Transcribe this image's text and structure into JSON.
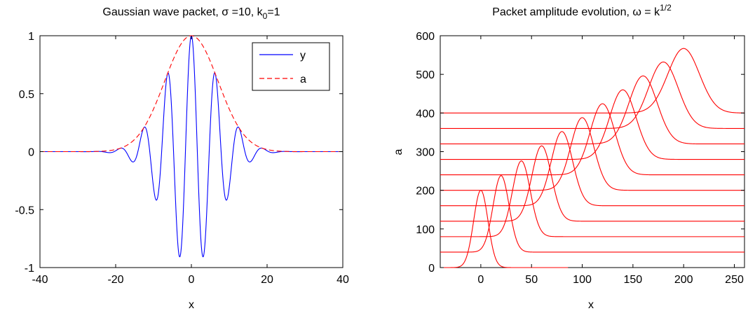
{
  "chart_data": [
    {
      "type": "line",
      "title": "Gaussian wave packet, σ =10, k",
      "title_sub": "0",
      "title_tail": "=1",
      "xlabel": "x",
      "ylabel": "",
      "xlim": [
        -40,
        40
      ],
      "ylim": [
        -1,
        1
      ],
      "xticks": [
        -40,
        -20,
        0,
        20,
        40
      ],
      "yticks": [
        -1,
        -0.5,
        0,
        0.5,
        1
      ],
      "grid": false,
      "legend_position": "top-right",
      "function": "y = exp(-(x/10)^2) * cos(x); a = exp(-(x/10)^2)",
      "series": [
        {
          "name": "y",
          "color": "#0000ff",
          "style": "solid",
          "sigma": 10,
          "k0": 1
        },
        {
          "name": "a",
          "color": "#ff0000",
          "style": "dashed",
          "sigma": 10
        }
      ]
    },
    {
      "type": "line",
      "title": "Packet amplitude evolution,  ω = k",
      "title_sup": "1/2",
      "xlabel": "x",
      "ylabel": "a",
      "xlim": [
        -40,
        260
      ],
      "ylim": [
        0,
        600
      ],
      "xticks": [
        0,
        50,
        100,
        150,
        200,
        250
      ],
      "yticks": [
        0,
        100,
        200,
        300,
        400,
        500,
        600
      ],
      "grid": false,
      "color": "#ff0000",
      "series": [
        {
          "offset": 0,
          "center": 0,
          "peak": 200,
          "x_end": 86
        },
        {
          "offset": 40,
          "center": 20,
          "peak": 238
        },
        {
          "offset": 80,
          "center": 40,
          "peak": 276
        },
        {
          "offset": 120,
          "center": 60,
          "peak": 315
        },
        {
          "offset": 160,
          "center": 80,
          "peak": 352
        },
        {
          "offset": 200,
          "center": 100,
          "peak": 388
        },
        {
          "offset": 240,
          "center": 120,
          "peak": 424
        },
        {
          "offset": 280,
          "center": 140,
          "peak": 460
        },
        {
          "offset": 320,
          "center": 160,
          "peak": 496
        },
        {
          "offset": 360,
          "center": 180,
          "peak": 532
        },
        {
          "offset": 400,
          "center": 200,
          "peak": 567
        }
      ]
    }
  ]
}
